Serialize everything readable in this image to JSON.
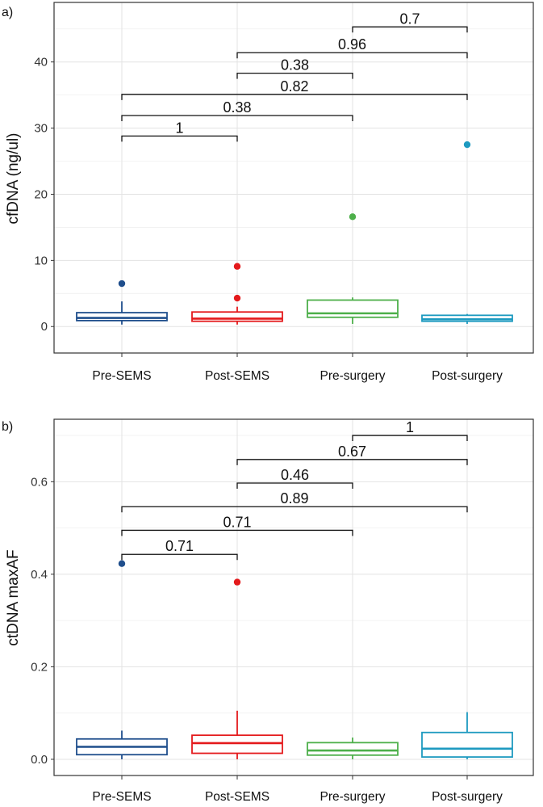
{
  "chart_data": [
    {
      "panel_label": "a)",
      "type": "box",
      "ylabel": "cfDNA (ng/ul)",
      "ylim": [
        -4,
        49
      ],
      "yticks": [
        0,
        10,
        20,
        30,
        40
      ],
      "ytick_labels": [
        "0",
        "10",
        "20",
        "30",
        "40"
      ],
      "grid": true,
      "categories": [
        "Pre-SEMS",
        "Post-SEMS",
        "Pre-surgery",
        "Post-surgery"
      ],
      "boxes": [
        {
          "name": "Pre-SEMS",
          "color": "#1f4e8c",
          "whisker_low": 0.3,
          "q1": 0.9,
          "median": 1.3,
          "q3": 2.1,
          "whisker_high": 3.8,
          "outliers": [
            6.5
          ]
        },
        {
          "name": "Post-SEMS",
          "color": "#e41a1c",
          "whisker_low": 0.3,
          "q1": 0.8,
          "median": 1.2,
          "q3": 2.2,
          "whisker_high": 3.0,
          "outliers": [
            4.3,
            9.1
          ]
        },
        {
          "name": "Pre-surgery",
          "color": "#4daf4a",
          "whisker_low": 0.4,
          "q1": 1.4,
          "median": 2.0,
          "q3": 4.0,
          "whisker_high": 4.4,
          "outliers": [
            16.6
          ]
        },
        {
          "name": "Post-surgery",
          "color": "#1e9ac0",
          "whisker_low": 0.4,
          "q1": 0.8,
          "median": 1.1,
          "q3": 1.7,
          "whisker_high": 1.9,
          "outliers": [
            27.5
          ]
        }
      ],
      "comparisons": [
        {
          "from": "Pre-SEMS",
          "to": "Post-SEMS",
          "y": 28.8,
          "label": "1"
        },
        {
          "from": "Pre-SEMS",
          "to": "Pre-surgery",
          "y": 31.9,
          "label": "0.38"
        },
        {
          "from": "Pre-SEMS",
          "to": "Post-surgery",
          "y": 35.1,
          "label": "0.82"
        },
        {
          "from": "Post-SEMS",
          "to": "Pre-surgery",
          "y": 38.3,
          "label": "0.38"
        },
        {
          "from": "Post-SEMS",
          "to": "Post-surgery",
          "y": 41.4,
          "label": "0.96"
        },
        {
          "from": "Pre-surgery",
          "to": "Post-surgery",
          "y": 45.3,
          "label": "0.7"
        }
      ]
    },
    {
      "panel_label": "b)",
      "type": "box",
      "ylabel": "ctDNA maxAF",
      "ylim": [
        -0.035,
        0.735
      ],
      "yticks": [
        0.0,
        0.2,
        0.4,
        0.6
      ],
      "ytick_labels": [
        "0.0",
        "0.2",
        "0.4",
        "0.6"
      ],
      "grid": true,
      "categories": [
        "Pre-SEMS",
        "Post-SEMS",
        "Pre-surgery",
        "Post-surgery"
      ],
      "boxes": [
        {
          "name": "Pre-SEMS",
          "color": "#1f4e8c",
          "whisker_low": 0.0,
          "q1": 0.01,
          "median": 0.027,
          "q3": 0.044,
          "whisker_high": 0.062,
          "outliers": [
            0.423
          ]
        },
        {
          "name": "Post-SEMS",
          "color": "#e41a1c",
          "whisker_low": 0.0,
          "q1": 0.013,
          "median": 0.035,
          "q3": 0.052,
          "whisker_high": 0.105,
          "outliers": [
            0.383
          ]
        },
        {
          "name": "Pre-surgery",
          "color": "#4daf4a",
          "whisker_low": 0.0,
          "q1": 0.009,
          "median": 0.019,
          "q3": 0.036,
          "whisker_high": 0.047,
          "outliers": []
        },
        {
          "name": "Post-surgery",
          "color": "#1e9ac0",
          "whisker_low": 0.0,
          "q1": 0.005,
          "median": 0.023,
          "q3": 0.058,
          "whisker_high": 0.102,
          "outliers": []
        }
      ],
      "comparisons": [
        {
          "from": "Pre-SEMS",
          "to": "Post-SEMS",
          "y": 0.443,
          "label": "0.71"
        },
        {
          "from": "Pre-SEMS",
          "to": "Pre-surgery",
          "y": 0.495,
          "label": "0.71"
        },
        {
          "from": "Pre-SEMS",
          "to": "Post-surgery",
          "y": 0.546,
          "label": "0.89"
        },
        {
          "from": "Post-SEMS",
          "to": "Pre-surgery",
          "y": 0.597,
          "label": "0.46"
        },
        {
          "from": "Post-SEMS",
          "to": "Post-surgery",
          "y": 0.648,
          "label": "0.67"
        },
        {
          "from": "Pre-surgery",
          "to": "Post-surgery",
          "y": 0.7,
          "label": "1"
        }
      ]
    }
  ]
}
